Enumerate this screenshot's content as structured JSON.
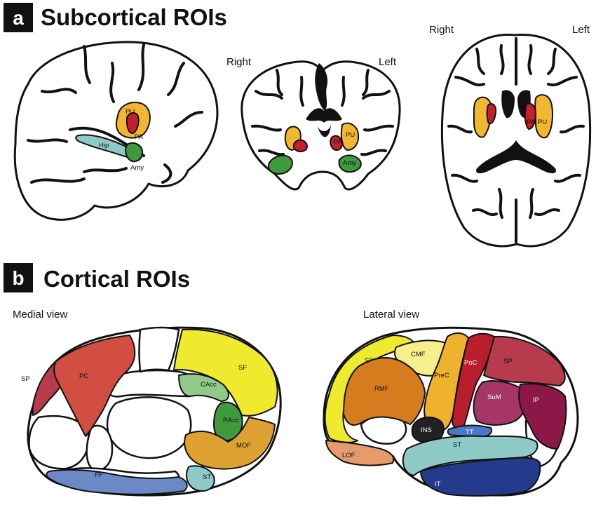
{
  "panel_a": {
    "letter": "a",
    "title": "Subcortical ROIs",
    "coronal": {
      "right": "Right",
      "left": "Left"
    },
    "axial": {
      "right": "Right",
      "left": "Left"
    },
    "labels": {
      "pu": "PU",
      "pa": "PA",
      "hip": "Hip",
      "amy": "Amy"
    }
  },
  "panel_b": {
    "letter": "b",
    "title": "Cortical ROIs",
    "medial_view": "Medial view",
    "lateral_view": "Lateral view",
    "medial_labels": {
      "sp": "SP",
      "pc": "PC",
      "sf": "SF",
      "cacc": "CAcc",
      "racc": "RAcc",
      "mof": "MOF",
      "ff": "FF",
      "st": "ST"
    },
    "lateral_labels": {
      "sf": "SF",
      "cmf": "CMF",
      "poc": "PoC",
      "sp": "SP",
      "rmf": "RMF",
      "prec": "PreC",
      "sum": "SuM",
      "ip": "IP",
      "ins": "INS",
      "tt": "TT",
      "st": "ST",
      "lof": "LOF",
      "it": "IT"
    }
  },
  "colors": {
    "putamen": "#f2b731",
    "pallidum": "#c3202f",
    "hippocampus": "#8ecac7",
    "amygdala": "#3f9a3e",
    "sp": "#b53b4d",
    "pc": "#d24e42",
    "sf": "#f0ea2e",
    "cacc": "#90c98a",
    "racc": "#3f9a3e",
    "mof": "#dca131",
    "ff": "#6a89c6",
    "st": "#8ecac7",
    "cmf": "#f7ef8c",
    "poc": "#b91e2c",
    "rmf": "#d57c1f",
    "prec": "#efb22f",
    "sum": "#a63668",
    "ip": "#8c1848",
    "ins": "#222222",
    "tt": "#4d75c8",
    "lof": "#e79a6b",
    "it": "#243b8c"
  }
}
